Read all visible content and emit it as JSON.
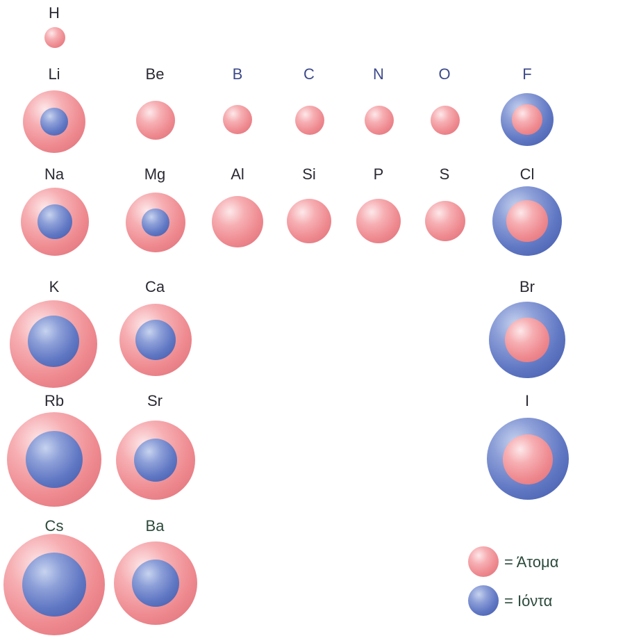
{
  "elements": [
    {
      "id": "h",
      "symbol": "H",
      "style": "plain"
    },
    {
      "id": "li",
      "symbol": "Li",
      "style": "plain"
    },
    {
      "id": "be",
      "symbol": "Be",
      "style": "plain"
    },
    {
      "id": "b",
      "symbol": "B",
      "style": "blue"
    },
    {
      "id": "c",
      "symbol": "C",
      "style": "blue"
    },
    {
      "id": "n",
      "symbol": "N",
      "style": "blue"
    },
    {
      "id": "o",
      "symbol": "O",
      "style": "blue"
    },
    {
      "id": "f",
      "symbol": "F",
      "style": "blue"
    },
    {
      "id": "na",
      "symbol": "Na",
      "style": "plain"
    },
    {
      "id": "mg",
      "symbol": "Mg",
      "style": "plain"
    },
    {
      "id": "al",
      "symbol": "Al",
      "style": "plain"
    },
    {
      "id": "si",
      "symbol": "Si",
      "style": "plain"
    },
    {
      "id": "p",
      "symbol": "P",
      "style": "plain"
    },
    {
      "id": "s",
      "symbol": "S",
      "style": "plain"
    },
    {
      "id": "cl",
      "symbol": "Cl",
      "style": "plain"
    },
    {
      "id": "k",
      "symbol": "K",
      "style": "plain"
    },
    {
      "id": "ca",
      "symbol": "Ca",
      "style": "plain"
    },
    {
      "id": "br",
      "symbol": "Br",
      "style": "plain"
    },
    {
      "id": "rb",
      "symbol": "Rb",
      "style": "plain"
    },
    {
      "id": "sr",
      "symbol": "Sr",
      "style": "plain"
    },
    {
      "id": "i",
      "symbol": "I",
      "style": "plain"
    },
    {
      "id": "cs",
      "symbol": "Cs",
      "style": "green"
    },
    {
      "id": "ba",
      "symbol": "Ba",
      "style": "green"
    }
  ],
  "legend": {
    "atom_label": "= Άτομα",
    "ion_label": "= Ιόντα"
  },
  "colors": {
    "atom": "#ee8a90",
    "ion": "#6178c4",
    "label_dark": "#2a2a33",
    "label_blue": "#3d4a8a",
    "label_green": "#2c4a3c"
  }
}
